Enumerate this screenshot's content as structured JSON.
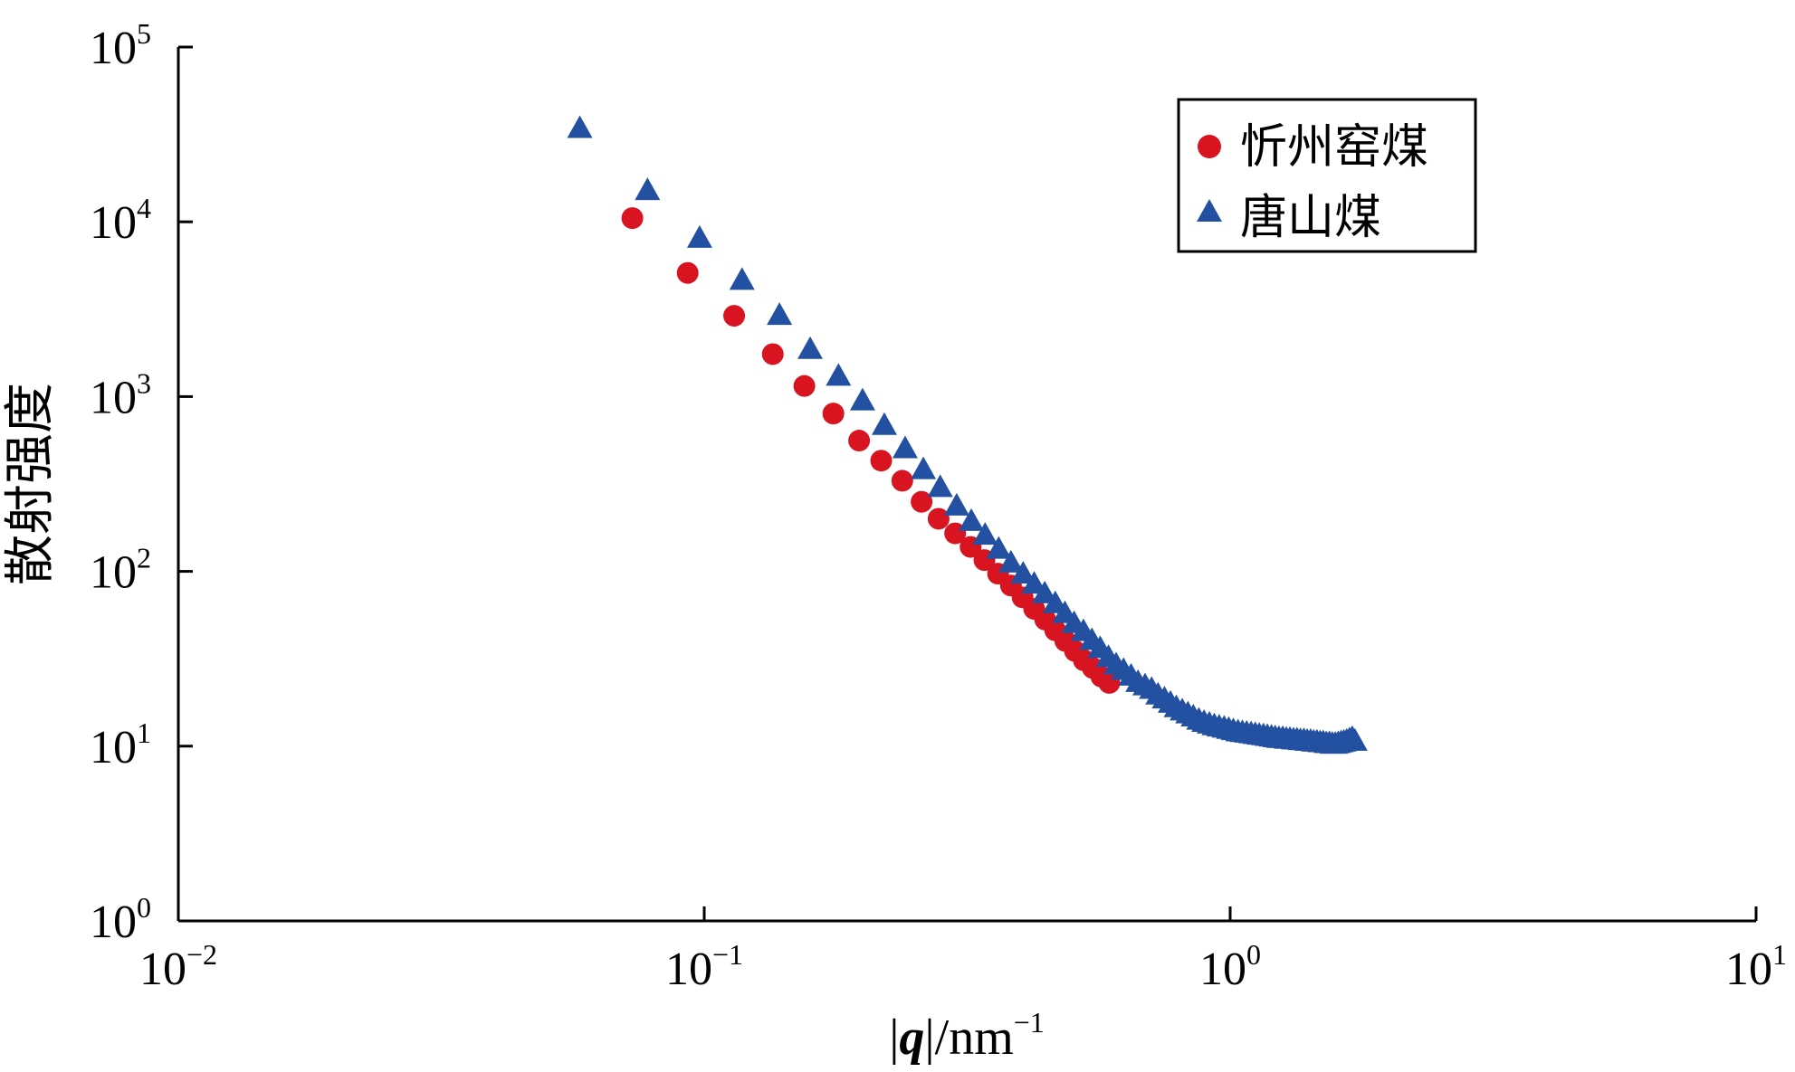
{
  "chart_data": {
    "type": "scatter",
    "xlabel": "|q|/nm⁻¹",
    "xlabel_parts": {
      "bar_left": "|",
      "q": "q",
      "rest": "|/nm",
      "sup": "−1"
    },
    "ylabel": "散射强度",
    "x_scale": "log",
    "y_scale": "log",
    "xlim": [
      0.01,
      10
    ],
    "ylim": [
      1,
      100000
    ],
    "x_ticks": [
      {
        "value": 0.01,
        "base": "10",
        "exp": "−2"
      },
      {
        "value": 0.1,
        "base": "10",
        "exp": "−1"
      },
      {
        "value": 1,
        "base": "10",
        "exp": "0"
      },
      {
        "value": 10,
        "base": "10",
        "exp": "1"
      }
    ],
    "y_ticks": [
      {
        "value": 1,
        "base": "10",
        "exp": "0"
      },
      {
        "value": 10,
        "base": "10",
        "exp": "1"
      },
      {
        "value": 100,
        "base": "10",
        "exp": "2"
      },
      {
        "value": 1000,
        "base": "10",
        "exp": "3"
      },
      {
        "value": 10000,
        "base": "10",
        "exp": "4"
      },
      {
        "value": 100000,
        "base": "10",
        "exp": "5"
      }
    ],
    "grid": false,
    "legend_position": "top-right",
    "series": [
      {
        "name": "忻州窑煤",
        "marker": "circle",
        "color": "#d7141f",
        "x": [
          0.073,
          0.093,
          0.114,
          0.135,
          0.155,
          0.176,
          0.197,
          0.217,
          0.238,
          0.259,
          0.279,
          0.3,
          0.321,
          0.341,
          0.362,
          0.383,
          0.403,
          0.424,
          0.445,
          0.465,
          0.486,
          0.507,
          0.527,
          0.548,
          0.569,
          0.589
        ],
        "y": [
          10500,
          5100,
          2900,
          1750,
          1150,
          800,
          560,
          430,
          330,
          250,
          200,
          165,
          138,
          116,
          97,
          83,
          71,
          61,
          53,
          46,
          40,
          35,
          31,
          28,
          25,
          23
        ]
      },
      {
        "name": "唐山煤",
        "marker": "triangle",
        "color": "#2350a0",
        "x": [
          0.058,
          0.078,
          0.098,
          0.118,
          0.139,
          0.159,
          0.18,
          0.2,
          0.22,
          0.241,
          0.261,
          0.281,
          0.302,
          0.322,
          0.342,
          0.363,
          0.383,
          0.404,
          0.424,
          0.444,
          0.465,
          0.485,
          0.505,
          0.526,
          0.546,
          0.566,
          0.587,
          0.607,
          0.627,
          0.648,
          0.668,
          0.689,
          0.709,
          0.729,
          0.75,
          0.77,
          0.79,
          0.811,
          0.831,
          0.851,
          0.872,
          0.892,
          0.913,
          0.933,
          0.953,
          0.974,
          0.994,
          1.014,
          1.035,
          1.055,
          1.075,
          1.096,
          1.116,
          1.136,
          1.157,
          1.177,
          1.198,
          1.218,
          1.238,
          1.259,
          1.279,
          1.299,
          1.32,
          1.34,
          1.36,
          1.381,
          1.401,
          1.422,
          1.442,
          1.462,
          1.483,
          1.503,
          1.523,
          1.544,
          1.564,
          1.584,
          1.605,
          1.625,
          1.645,
          1.666,
          1.686,
          1.707,
          1.727
        ],
        "y": [
          34000,
          15000,
          8000,
          4600,
          2900,
          1850,
          1300,
          940,
          680,
          500,
          380,
          300,
          235,
          192,
          160,
          133,
          111,
          96,
          84,
          74,
          65,
          57,
          50,
          45,
          40,
          36,
          32,
          29,
          27,
          25,
          23,
          22,
          21,
          19.5,
          18.5,
          17.5,
          16.5,
          15.8,
          15.2,
          14.6,
          14,
          13.6,
          13.3,
          13,
          12.8,
          12.6,
          12.4,
          12.2,
          12,
          11.9,
          11.8,
          11.7,
          11.6,
          11.5,
          11.4,
          11.3,
          11.2,
          11.1,
          11,
          11,
          10.9,
          10.9,
          10.8,
          10.8,
          10.7,
          10.7,
          10.6,
          10.6,
          10.5,
          10.5,
          10.4,
          10.4,
          10.3,
          10.3,
          10.2,
          10.2,
          10.3,
          10.4,
          10.5,
          10.6,
          10.8,
          11,
          10.6
        ]
      }
    ]
  }
}
